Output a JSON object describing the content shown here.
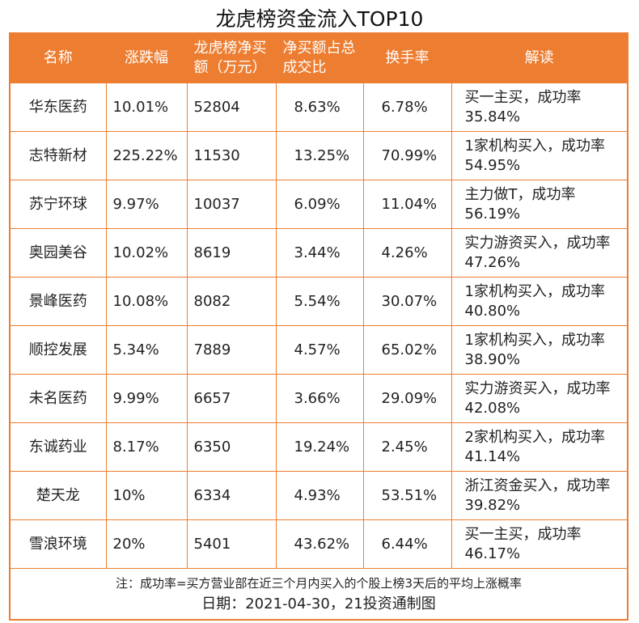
{
  "title": "龙虎榜资金流入TOP10",
  "colors": {
    "header": "#ED7D31",
    "border": "#ED7D31"
  },
  "chart_data": {
    "type": "table",
    "title": "龙虎榜资金流入TOP10",
    "columns": [
      "名称",
      "涨跌幅",
      "龙虎榜净买额（万元）",
      "净买额占总成交比",
      "换手率",
      "解读"
    ],
    "rows": [
      [
        "华东医药",
        "10.01%",
        "52804",
        "8.63%",
        "6.78%",
        "买一主买，成功率35.84%"
      ],
      [
        "志特新材",
        "225.22%",
        "11530",
        "13.25%",
        "70.99%",
        "1家机构买入，成功率54.95%"
      ],
      [
        "苏宁环球",
        "9.97%",
        "10037",
        "6.09%",
        "11.04%",
        "主力做T，成功率56.19%"
      ],
      [
        "奥园美谷",
        "10.02%",
        "8619",
        "3.44%",
        "4.26%",
        "实力游资买入，成功率47.26%"
      ],
      [
        "景峰医药",
        "10.08%",
        "8082",
        "5.54%",
        "30.07%",
        "1家机构买入，成功率40.80%"
      ],
      [
        "顺控发展",
        "5.34%",
        "7889",
        "4.57%",
        "65.02%",
        "1家机构买入，成功率38.90%"
      ],
      [
        "未名医药",
        "9.99%",
        "6657",
        "3.66%",
        "29.09%",
        "实力游资买入，成功率42.08%"
      ],
      [
        "东诚药业",
        "8.17%",
        "6350",
        "19.24%",
        "2.45%",
        "2家机构买入，成功率41.14%"
      ],
      [
        "楚天龙",
        "10%",
        "6334",
        "4.93%",
        "53.51%",
        "浙江资金买入，成功率39.82%"
      ],
      [
        "雪浪环境",
        "20%",
        "5401",
        "43.62%",
        "6.44%",
        "买一主买，成功率46.17%"
      ]
    ],
    "footnote": "注：成功率=买方营业部在近三个月内买入的个股上榜3天后的平均上涨概率",
    "source": "日期：2021-04-30，21投资通制图"
  }
}
